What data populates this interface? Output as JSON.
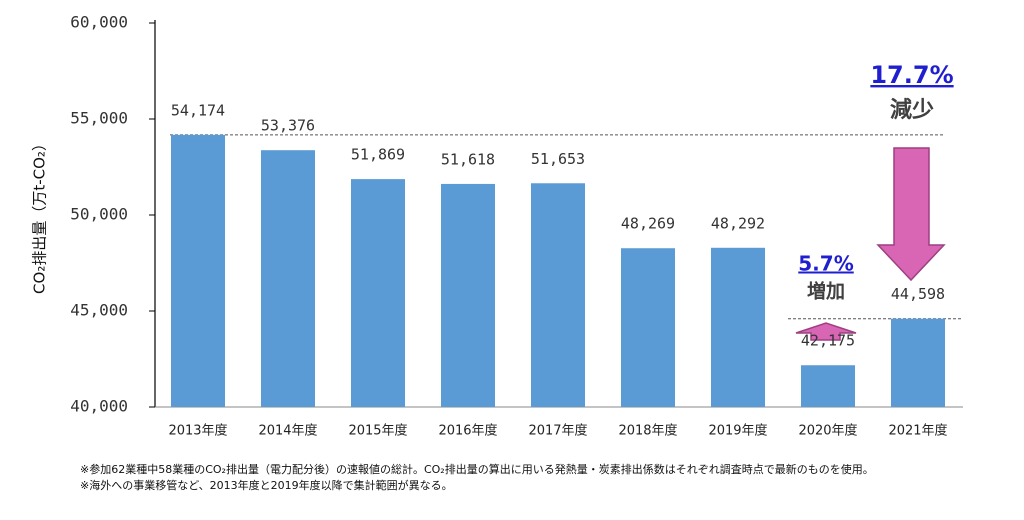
{
  "chart_data": {
    "type": "bar",
    "y_label": "CO₂排出量（万t-CO₂）",
    "categories": [
      "2013年度",
      "2014年度",
      "2015年度",
      "2016年度",
      "2017年度",
      "2018年度",
      "2019年度",
      "2020年度",
      "2021年度"
    ],
    "values": [
      54174,
      53376,
      51869,
      51618,
      51653,
      48269,
      48292,
      42175,
      44598
    ],
    "value_labels": [
      "54,174",
      "53,376",
      "51,869",
      "51,618",
      "51,653",
      "48,269",
      "48,292",
      "42,175",
      "44,598"
    ],
    "color": "#5b9bd5",
    "ylim": [
      40000,
      60000
    ],
    "yticks": [
      {
        "value": 40000,
        "label": "40,000"
      },
      {
        "value": 45000,
        "label": "45,000"
      },
      {
        "value": 50000,
        "label": "50,000"
      },
      {
        "value": 55000,
        "label": "55,000"
      },
      {
        "value": 60000,
        "label": "60,000"
      }
    ],
    "grid": false,
    "annotations": [
      {
        "value": "17.7%",
        "text": "減少"
      },
      {
        "value": "5.7%",
        "text": "増加"
      }
    ],
    "notes": [
      "※参加62業種中58業種のCO₂排出量（電力配分後）の速報値の総計。CO₂排出量の算出に用いる発熱量・炭素排出係数はそれぞれ調査時点で最新のものを使用。",
      "※海外への事業移管など、2013年度と2019年度以降で集計範囲が異なる。"
    ]
  }
}
